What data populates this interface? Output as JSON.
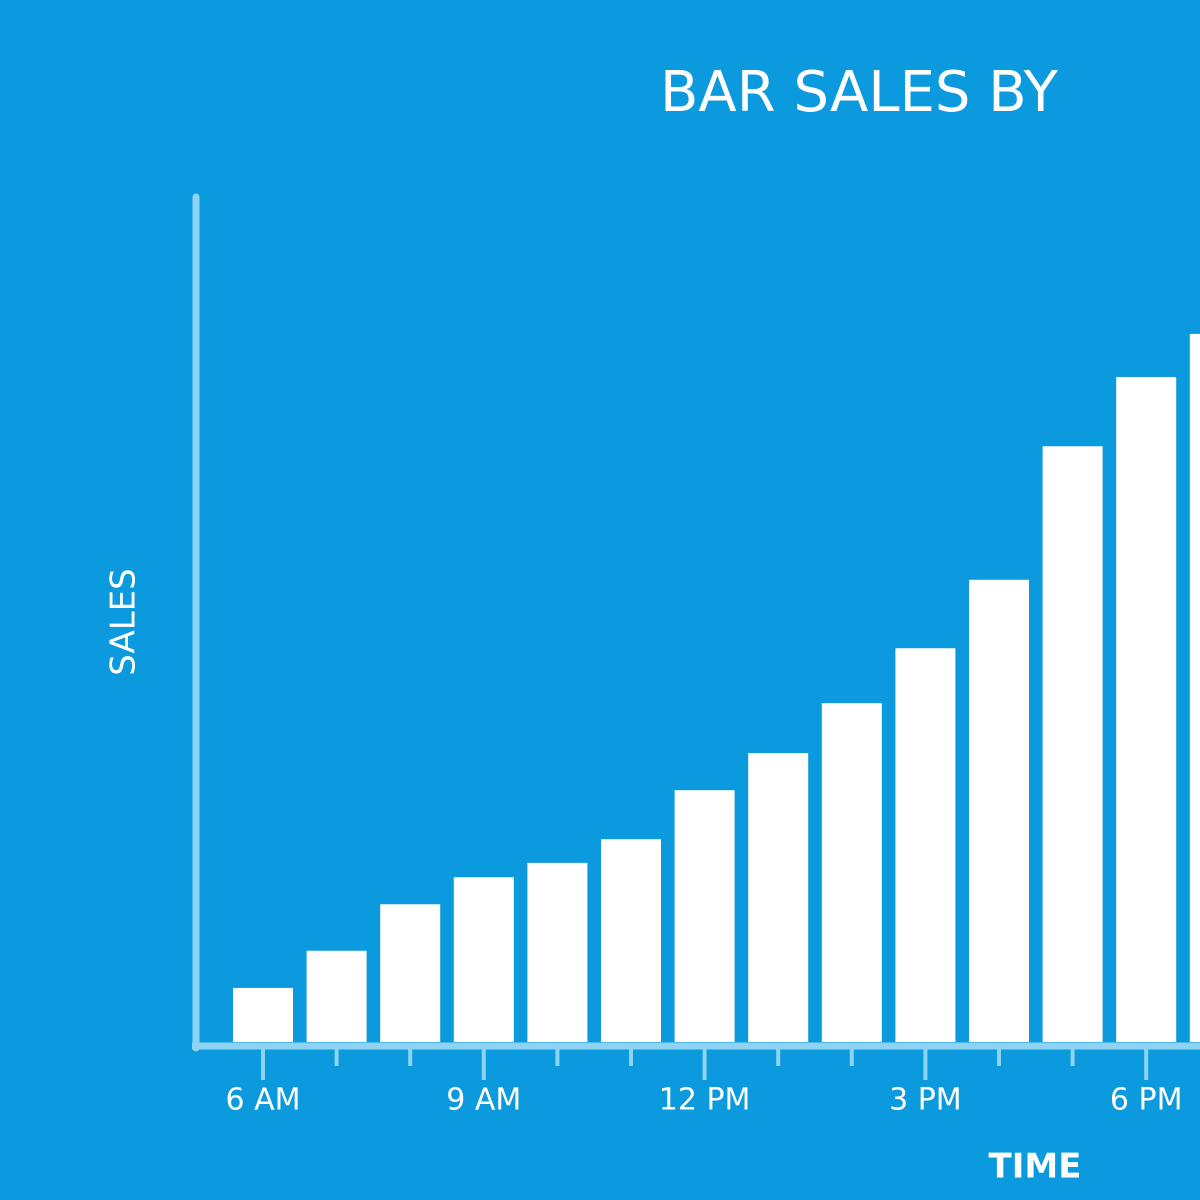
{
  "chart_data": {
    "type": "bar",
    "title": "BAR SALES BY",
    "x_label": "TIME",
    "y_label": "SALES",
    "categories": [
      "6 AM",
      null,
      null,
      "9 AM",
      null,
      null,
      "12 PM",
      null,
      null,
      "3 PM",
      null,
      null,
      "6 PM",
      null
    ],
    "values": [
      6.4,
      10.8,
      16.3,
      19.5,
      21.2,
      24.0,
      29.8,
      34.2,
      40.1,
      46.6,
      54.7,
      70.5,
      78.7,
      83.8
    ],
    "color": "#ffffff",
    "ylim": [
      0,
      100
    ]
  }
}
